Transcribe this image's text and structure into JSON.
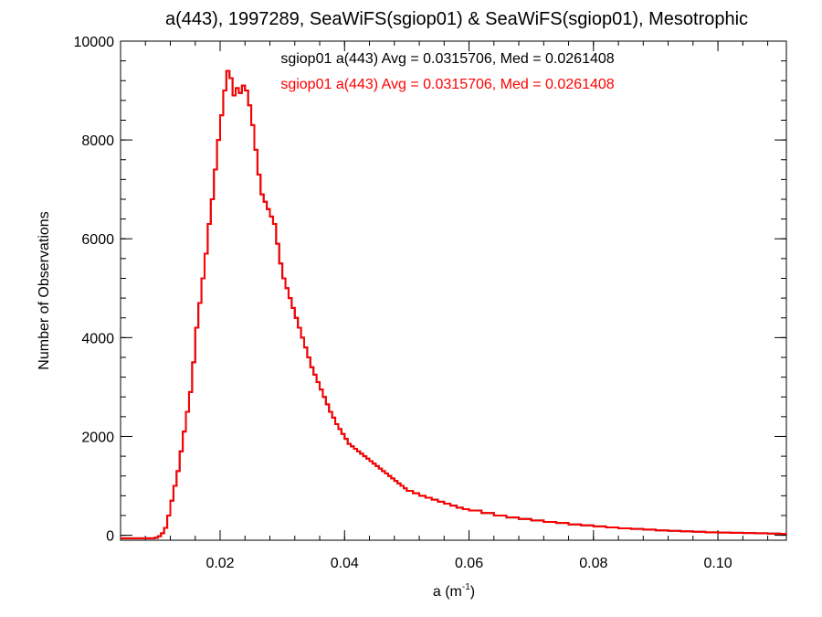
{
  "chart_data": {
    "type": "line",
    "title": "a(443), 1997289, SeaWiFS(sgiop01) & SeaWiFS(sgiop01), Mesotrophic",
    "xlabel": "a (m",
    "xlabel_sup": "-1",
    "xlabel_close": ")",
    "ylabel": "Number of Observations",
    "xlim": [
      0.004,
      0.111
    ],
    "ylim": [
      -100,
      10000
    ],
    "x_ticks": [
      0.02,
      0.04,
      0.06,
      0.08,
      0.1
    ],
    "x_tick_labels": [
      "0.02",
      "0.04",
      "0.06",
      "0.08",
      "0.10"
    ],
    "y_ticks": [
      0,
      2000,
      4000,
      6000,
      8000,
      10000
    ],
    "y_tick_labels": [
      "0",
      "2000",
      "4000",
      "6000",
      "8000",
      "10000"
    ],
    "x_minor_per_major": 4,
    "y_minor_per_major": 4,
    "grid": false,
    "step": true,
    "series": [
      {
        "name": "sgiop01 a(443) Avg = 0.0315706, Med = 0.0261408",
        "color": "#000000",
        "points": [
          [
            0.004,
            -60
          ],
          [
            0.009,
            -60
          ],
          [
            0.0095,
            -50
          ],
          [
            0.01,
            -20
          ],
          [
            0.0105,
            40
          ],
          [
            0.011,
            150
          ],
          [
            0.0115,
            400
          ],
          [
            0.012,
            700
          ],
          [
            0.0125,
            1000
          ],
          [
            0.013,
            1300
          ],
          [
            0.0135,
            1700
          ],
          [
            0.014,
            2100
          ],
          [
            0.0145,
            2500
          ],
          [
            0.015,
            2900
          ],
          [
            0.0155,
            3500
          ],
          [
            0.016,
            4200
          ],
          [
            0.0165,
            4700
          ],
          [
            0.017,
            5200
          ],
          [
            0.0175,
            5700
          ],
          [
            0.018,
            6300
          ],
          [
            0.0185,
            6800
          ],
          [
            0.019,
            7400
          ],
          [
            0.0195,
            8000
          ],
          [
            0.02,
            8500
          ],
          [
            0.0205,
            9000
          ],
          [
            0.021,
            9400
          ],
          [
            0.0215,
            9250
          ],
          [
            0.022,
            8900
          ],
          [
            0.0225,
            9050
          ],
          [
            0.023,
            8950
          ],
          [
            0.0235,
            9100
          ],
          [
            0.024,
            9000
          ],
          [
            0.0245,
            8700
          ],
          [
            0.025,
            8300
          ],
          [
            0.0255,
            7800
          ],
          [
            0.026,
            7300
          ],
          [
            0.0265,
            6900
          ],
          [
            0.027,
            6750
          ],
          [
            0.0275,
            6600
          ],
          [
            0.028,
            6450
          ],
          [
            0.0285,
            6300
          ],
          [
            0.029,
            5900
          ],
          [
            0.0295,
            5500
          ],
          [
            0.03,
            5200
          ],
          [
            0.0305,
            5000
          ],
          [
            0.031,
            4800
          ],
          [
            0.0315,
            4600
          ],
          [
            0.032,
            4400
          ],
          [
            0.0325,
            4200
          ],
          [
            0.033,
            4000
          ],
          [
            0.0335,
            3800
          ],
          [
            0.034,
            3600
          ],
          [
            0.0345,
            3400
          ],
          [
            0.035,
            3250
          ],
          [
            0.0355,
            3100
          ],
          [
            0.036,
            2950
          ],
          [
            0.0365,
            2800
          ],
          [
            0.037,
            2650
          ],
          [
            0.0375,
            2500
          ],
          [
            0.038,
            2380
          ],
          [
            0.0385,
            2250
          ],
          [
            0.039,
            2150
          ],
          [
            0.0395,
            2050
          ],
          [
            0.04,
            1950
          ],
          [
            0.0405,
            1850
          ],
          [
            0.041,
            1800
          ],
          [
            0.0415,
            1750
          ],
          [
            0.042,
            1700
          ],
          [
            0.0425,
            1650
          ],
          [
            0.043,
            1600
          ],
          [
            0.0435,
            1550
          ],
          [
            0.044,
            1500
          ],
          [
            0.0445,
            1450
          ],
          [
            0.045,
            1400
          ],
          [
            0.0455,
            1350
          ],
          [
            0.046,
            1300
          ],
          [
            0.0465,
            1250
          ],
          [
            0.047,
            1200
          ],
          [
            0.0475,
            1150
          ],
          [
            0.048,
            1100
          ],
          [
            0.0485,
            1050
          ],
          [
            0.049,
            1000
          ],
          [
            0.0495,
            950
          ],
          [
            0.05,
            900
          ],
          [
            0.051,
            850
          ],
          [
            0.052,
            800
          ],
          [
            0.053,
            760
          ],
          [
            0.054,
            720
          ],
          [
            0.055,
            680
          ],
          [
            0.056,
            640
          ],
          [
            0.057,
            600
          ],
          [
            0.058,
            560
          ],
          [
            0.059,
            530
          ],
          [
            0.06,
            500
          ],
          [
            0.062,
            450
          ],
          [
            0.064,
            400
          ],
          [
            0.066,
            360
          ],
          [
            0.068,
            330
          ],
          [
            0.07,
            300
          ],
          [
            0.072,
            270
          ],
          [
            0.074,
            250
          ],
          [
            0.076,
            220
          ],
          [
            0.078,
            200
          ],
          [
            0.08,
            180
          ],
          [
            0.082,
            160
          ],
          [
            0.084,
            140
          ],
          [
            0.086,
            130
          ],
          [
            0.088,
            115
          ],
          [
            0.09,
            100
          ],
          [
            0.092,
            90
          ],
          [
            0.094,
            80
          ],
          [
            0.096,
            70
          ],
          [
            0.098,
            60
          ],
          [
            0.1,
            55
          ],
          [
            0.102,
            50
          ],
          [
            0.104,
            45
          ],
          [
            0.106,
            40
          ],
          [
            0.108,
            35
          ],
          [
            0.11,
            30
          ],
          [
            0.111,
            30
          ]
        ]
      },
      {
        "name": "sgiop01 a(443) Avg = 0.0315706, Med = 0.0261408",
        "color": "#ff0000",
        "points": [
          [
            0.004,
            -60
          ],
          [
            0.009,
            -60
          ],
          [
            0.0095,
            -50
          ],
          [
            0.01,
            -20
          ],
          [
            0.0105,
            40
          ],
          [
            0.011,
            150
          ],
          [
            0.0115,
            400
          ],
          [
            0.012,
            700
          ],
          [
            0.0125,
            1000
          ],
          [
            0.013,
            1300
          ],
          [
            0.0135,
            1700
          ],
          [
            0.014,
            2100
          ],
          [
            0.0145,
            2500
          ],
          [
            0.015,
            2900
          ],
          [
            0.0155,
            3500
          ],
          [
            0.016,
            4200
          ],
          [
            0.0165,
            4700
          ],
          [
            0.017,
            5200
          ],
          [
            0.0175,
            5700
          ],
          [
            0.018,
            6300
          ],
          [
            0.0185,
            6800
          ],
          [
            0.019,
            7400
          ],
          [
            0.0195,
            8000
          ],
          [
            0.02,
            8500
          ],
          [
            0.0205,
            9000
          ],
          [
            0.021,
            9400
          ],
          [
            0.0215,
            9250
          ],
          [
            0.022,
            8900
          ],
          [
            0.0225,
            9050
          ],
          [
            0.023,
            8950
          ],
          [
            0.0235,
            9100
          ],
          [
            0.024,
            9000
          ],
          [
            0.0245,
            8700
          ],
          [
            0.025,
            8300
          ],
          [
            0.0255,
            7800
          ],
          [
            0.026,
            7300
          ],
          [
            0.0265,
            6900
          ],
          [
            0.027,
            6750
          ],
          [
            0.0275,
            6600
          ],
          [
            0.028,
            6450
          ],
          [
            0.0285,
            6300
          ],
          [
            0.029,
            5900
          ],
          [
            0.0295,
            5500
          ],
          [
            0.03,
            5200
          ],
          [
            0.0305,
            5000
          ],
          [
            0.031,
            4800
          ],
          [
            0.0315,
            4600
          ],
          [
            0.032,
            4400
          ],
          [
            0.0325,
            4200
          ],
          [
            0.033,
            4000
          ],
          [
            0.0335,
            3800
          ],
          [
            0.034,
            3600
          ],
          [
            0.0345,
            3400
          ],
          [
            0.035,
            3250
          ],
          [
            0.0355,
            3100
          ],
          [
            0.036,
            2950
          ],
          [
            0.0365,
            2800
          ],
          [
            0.037,
            2650
          ],
          [
            0.0375,
            2500
          ],
          [
            0.038,
            2380
          ],
          [
            0.0385,
            2250
          ],
          [
            0.039,
            2150
          ],
          [
            0.0395,
            2050
          ],
          [
            0.04,
            1950
          ],
          [
            0.0405,
            1850
          ],
          [
            0.041,
            1800
          ],
          [
            0.0415,
            1750
          ],
          [
            0.042,
            1700
          ],
          [
            0.0425,
            1650
          ],
          [
            0.043,
            1600
          ],
          [
            0.0435,
            1550
          ],
          [
            0.044,
            1500
          ],
          [
            0.0445,
            1450
          ],
          [
            0.045,
            1400
          ],
          [
            0.0455,
            1350
          ],
          [
            0.046,
            1300
          ],
          [
            0.0465,
            1250
          ],
          [
            0.047,
            1200
          ],
          [
            0.0475,
            1150
          ],
          [
            0.048,
            1100
          ],
          [
            0.0485,
            1050
          ],
          [
            0.049,
            1000
          ],
          [
            0.0495,
            950
          ],
          [
            0.05,
            900
          ],
          [
            0.051,
            850
          ],
          [
            0.052,
            800
          ],
          [
            0.053,
            760
          ],
          [
            0.054,
            720
          ],
          [
            0.055,
            680
          ],
          [
            0.056,
            640
          ],
          [
            0.057,
            600
          ],
          [
            0.058,
            560
          ],
          [
            0.059,
            530
          ],
          [
            0.06,
            500
          ],
          [
            0.062,
            450
          ],
          [
            0.064,
            400
          ],
          [
            0.066,
            360
          ],
          [
            0.068,
            330
          ],
          [
            0.07,
            300
          ],
          [
            0.072,
            270
          ],
          [
            0.074,
            250
          ],
          [
            0.076,
            220
          ],
          [
            0.078,
            200
          ],
          [
            0.08,
            180
          ],
          [
            0.082,
            160
          ],
          [
            0.084,
            140
          ],
          [
            0.086,
            130
          ],
          [
            0.088,
            115
          ],
          [
            0.09,
            100
          ],
          [
            0.092,
            90
          ],
          [
            0.094,
            80
          ],
          [
            0.096,
            70
          ],
          [
            0.098,
            60
          ],
          [
            0.1,
            55
          ],
          [
            0.102,
            50
          ],
          [
            0.104,
            45
          ],
          [
            0.106,
            40
          ],
          [
            0.108,
            35
          ],
          [
            0.11,
            30
          ],
          [
            0.111,
            30
          ]
        ]
      }
    ],
    "annotations": [
      {
        "text": "sgiop01 a(443) Avg = 0.0315706, Med = 0.0261408",
        "color": "#000000"
      },
      {
        "text": "sgiop01 a(443) Avg = 0.0315706, Med = 0.0261408",
        "color": "#ff0000"
      }
    ]
  }
}
